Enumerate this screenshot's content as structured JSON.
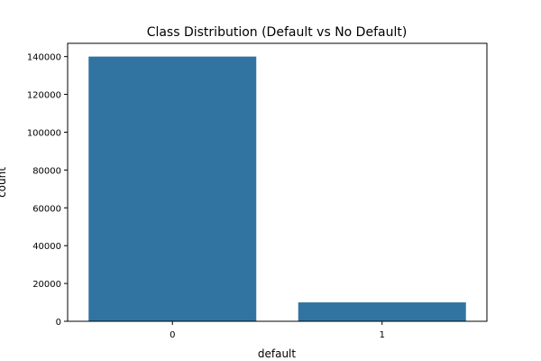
{
  "chart_data": {
    "type": "bar",
    "title": "Class Distribution (Default vs No Default)",
    "xlabel": "default",
    "ylabel": "count",
    "categories": [
      "0",
      "1"
    ],
    "values": [
      140000,
      10000
    ],
    "ylim": [
      0,
      147000
    ],
    "yticks": [
      0,
      20000,
      40000,
      60000,
      80000,
      100000,
      120000,
      140000
    ],
    "ytick_labels": [
      "0",
      "20000",
      "40000",
      "60000",
      "80000",
      "100000",
      "120000",
      "140000"
    ],
    "bar_color": "#3274a1",
    "grid": false,
    "legend": "none"
  }
}
